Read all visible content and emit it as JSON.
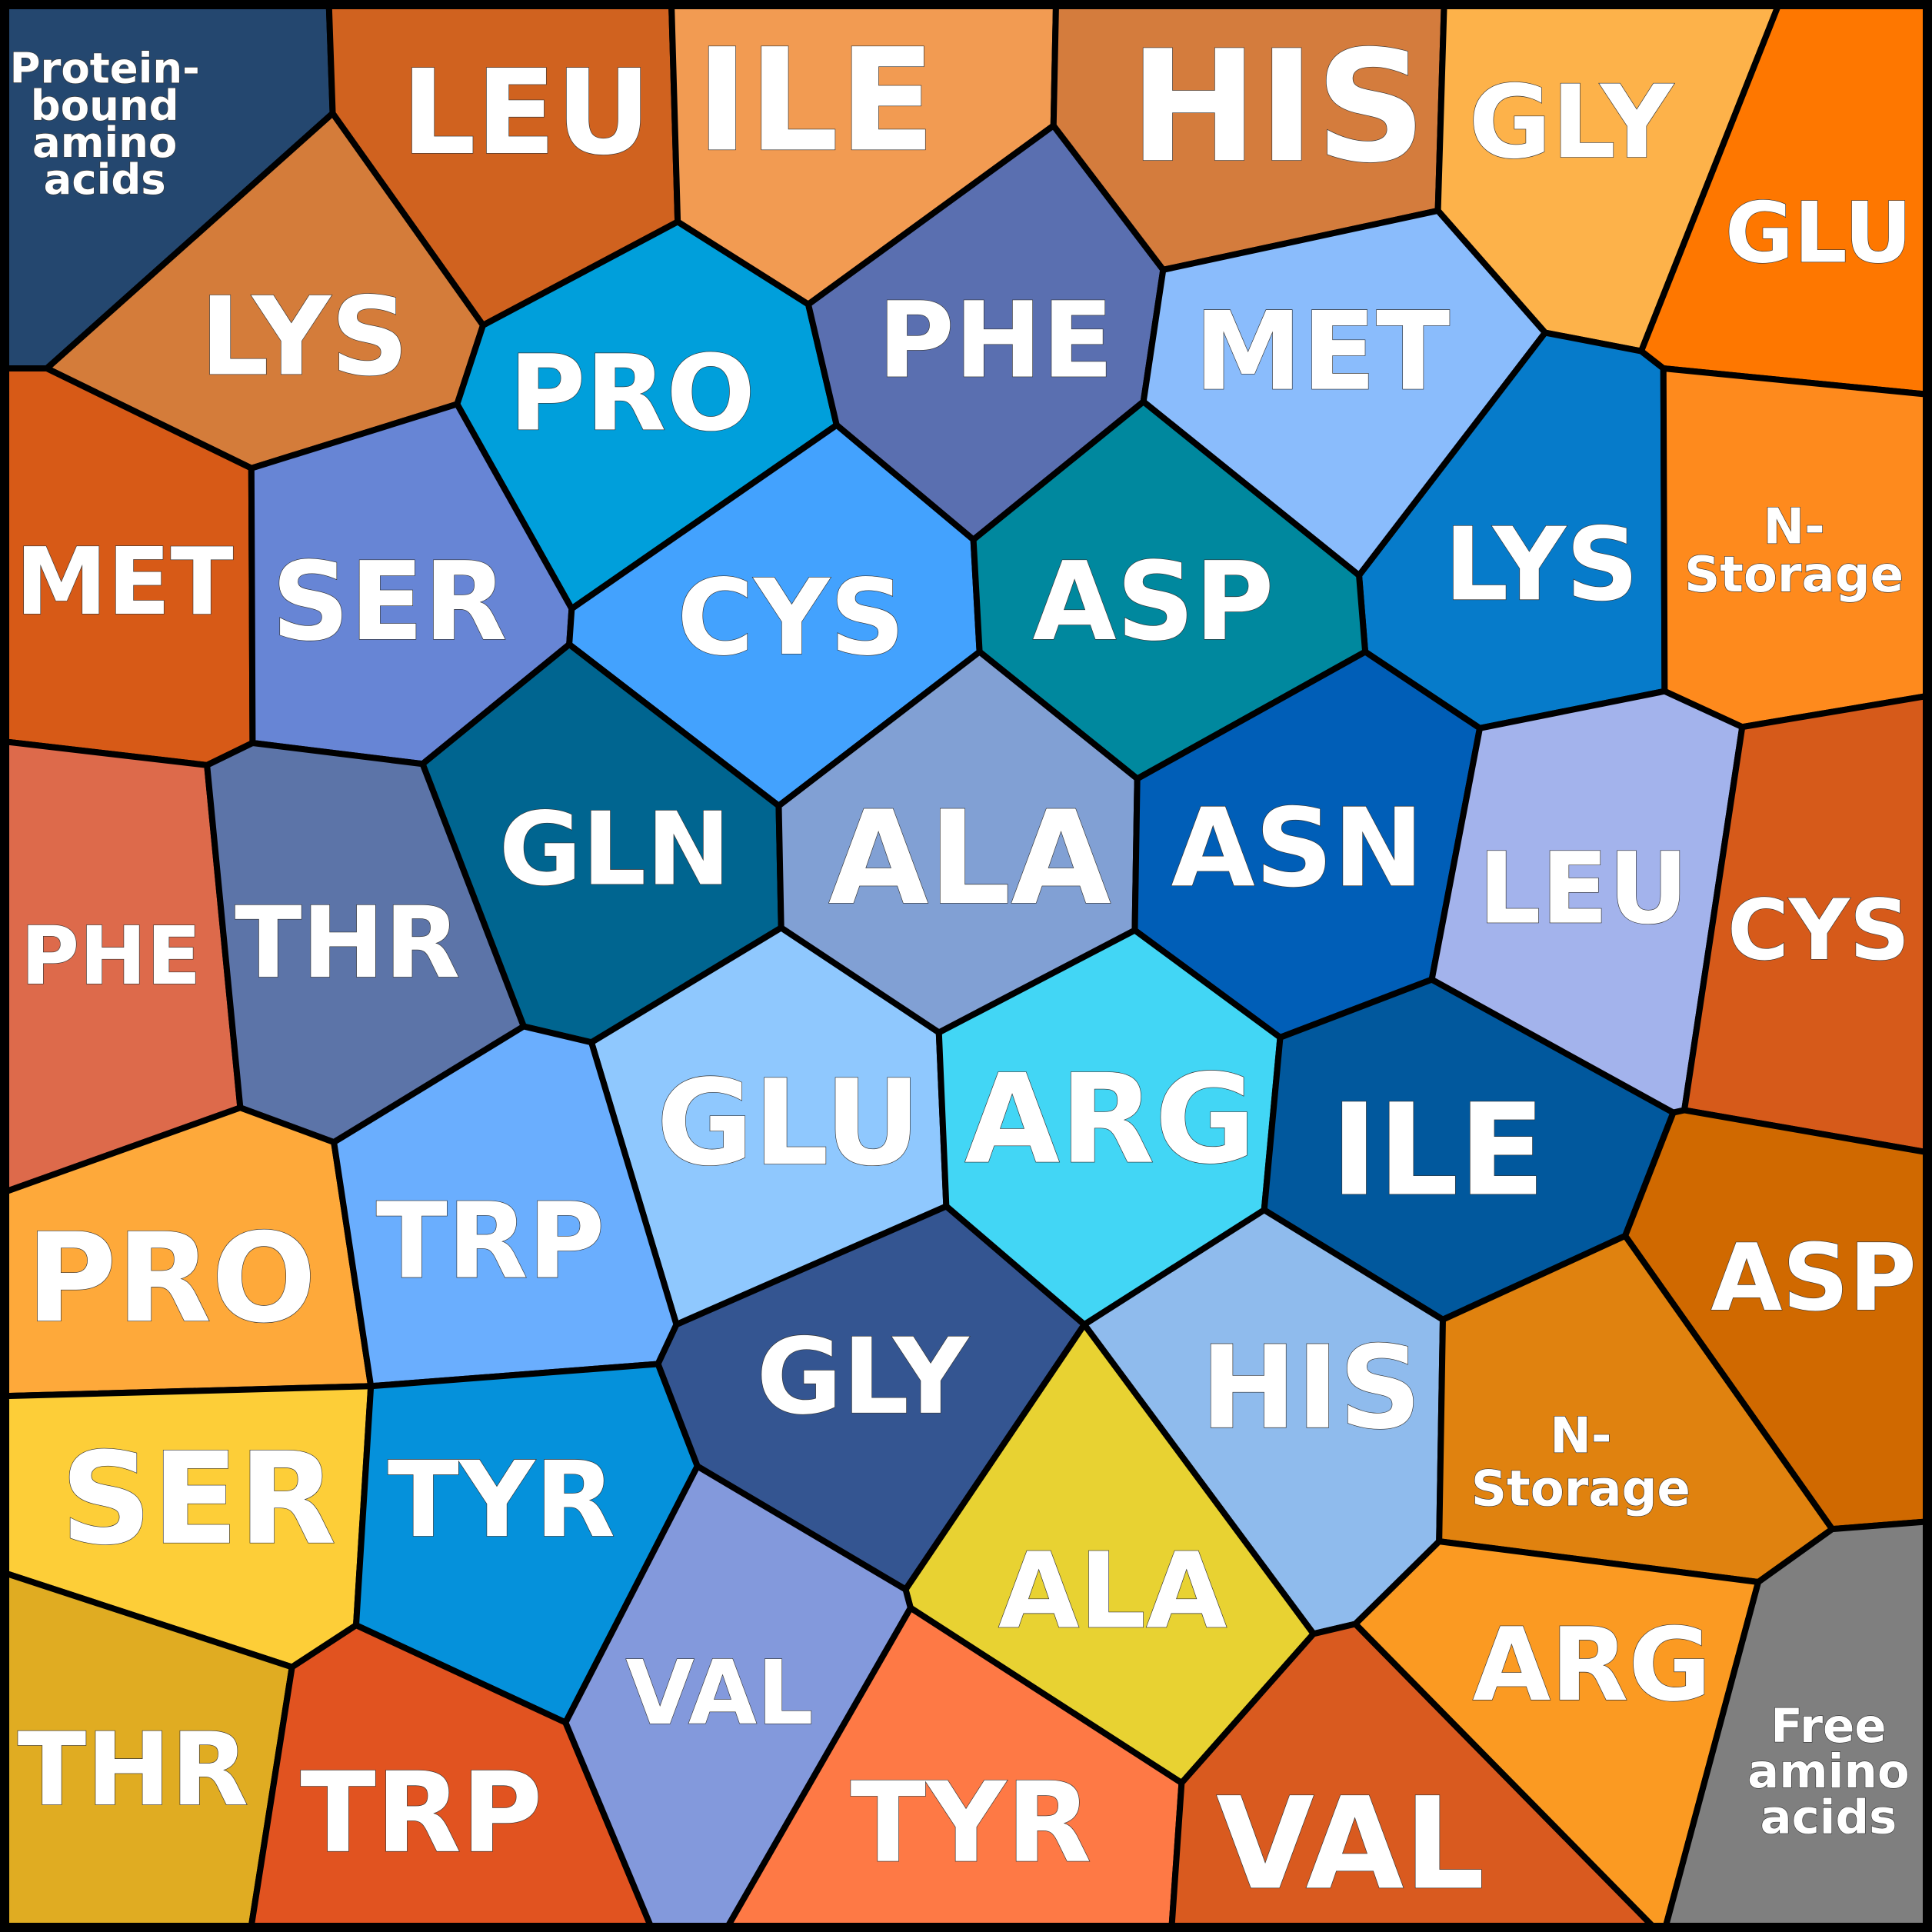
{
  "diagram": {
    "type": "voronoi-treemap",
    "groups": [
      {
        "label": "Protein-bound amino acids",
        "color": "#24476f"
      },
      {
        "label": "N-Storage",
        "color": "#fe8a1d"
      },
      {
        "label": "Free amino acids",
        "color": "#7f7f7f"
      }
    ],
    "cells": [
      {
        "label": "Protein-bound amino acids",
        "lines": [
          "Protein-",
          "bound",
          "amino",
          "acids"
        ],
        "color": "#24476f"
      },
      {
        "label": "LEU",
        "color": "#d0621f"
      },
      {
        "label": "ILE",
        "color": "#f29b52"
      },
      {
        "label": "HIS",
        "color": "#d47c3d"
      },
      {
        "label": "GLY",
        "color": "#fdb24a"
      },
      {
        "label": "GLU",
        "color": "#fe7700"
      },
      {
        "label": "LYS",
        "color": "#d47c3a"
      },
      {
        "label": "PRO",
        "color": "#009fdb"
      },
      {
        "label": "PHE",
        "color": "#5a6fb0"
      },
      {
        "label": "MET",
        "color": "#8abcfc"
      },
      {
        "label": "LYS",
        "color": "#067bca"
      },
      {
        "label": "N-Storage",
        "lines": [
          "N-",
          "Storage"
        ],
        "color": "#fe8a1d"
      },
      {
        "label": "MET",
        "color": "#d75a17"
      },
      {
        "label": "SER",
        "color": "#6785d5"
      },
      {
        "label": "CYS",
        "color": "#43a2fe"
      },
      {
        "label": "ASP",
        "color": "#00889e"
      },
      {
        "label": "GLN",
        "color": "#006590"
      },
      {
        "label": "ALA",
        "color": "#81a0d4"
      },
      {
        "label": "ASN",
        "color": "#005eb7"
      },
      {
        "label": "LEU",
        "color": "#a3b3ec"
      },
      {
        "label": "CYS",
        "color": "#d65a1a"
      },
      {
        "label": "PHE",
        "color": "#dd6a4b"
      },
      {
        "label": "THR",
        "color": "#5c74a8"
      },
      {
        "label": "GLU",
        "color": "#8fc8fe"
      },
      {
        "label": "ARG",
        "color": "#42d6f5"
      },
      {
        "label": "ILE",
        "color": "#01589d"
      },
      {
        "label": "ASP",
        "color": "#d06900"
      },
      {
        "label": "PRO",
        "color": "#fea93a"
      },
      {
        "label": "TRP",
        "color": "#6aaefe"
      },
      {
        "label": "GLY",
        "color": "#345591"
      },
      {
        "label": "HIS",
        "color": "#8fbbed"
      },
      {
        "label": "N-Storage",
        "lines": [
          "N-",
          "Storage"
        ],
        "color": "#e0820f"
      },
      {
        "label": "SER",
        "color": "#fdce38"
      },
      {
        "label": "TYR",
        "color": "#0591db"
      },
      {
        "label": "ALA",
        "color": "#e8d232"
      },
      {
        "label": "THR",
        "color": "#e0ac22"
      },
      {
        "label": "TRP",
        "color": "#e15320"
      },
      {
        "label": "VAL",
        "color": "#8399dc"
      },
      {
        "label": "TYR",
        "color": "#fe7945"
      },
      {
        "label": "VAL",
        "color": "#d95a1f"
      },
      {
        "label": "ARG",
        "color": "#fb9a22"
      },
      {
        "label": "Free amino acids",
        "lines": [
          "Free",
          "amino",
          "acids"
        ],
        "color": "#7f7f7f"
      }
    ]
  }
}
